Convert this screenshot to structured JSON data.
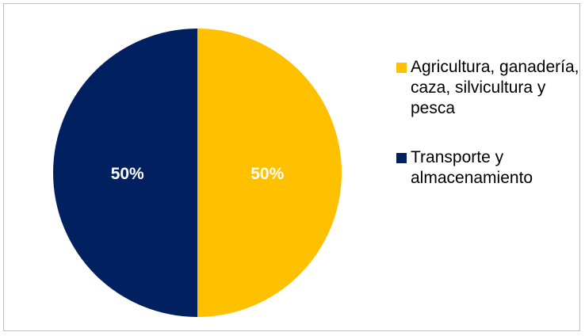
{
  "chart_data": {
    "type": "pie",
    "title": "",
    "categories": [
      "Agricultura, ganadería, caza, silvicultura y pesca",
      "Transporte y almacenamiento"
    ],
    "values": [
      50,
      50
    ],
    "data_labels": [
      "50%",
      "50%"
    ],
    "colors": [
      "#FFC000",
      "#002060"
    ],
    "legend_position": "right"
  }
}
